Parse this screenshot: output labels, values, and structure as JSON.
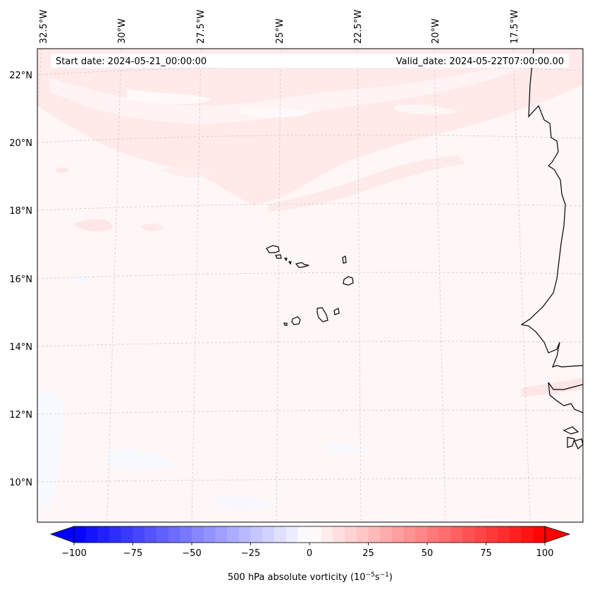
{
  "header": {
    "start_date": "Start date: 2024-05-21_00:00:00",
    "valid_date": "Valid_date: 2024-05-22T07:00:00.00"
  },
  "axes": {
    "longitude_labels": [
      "32.5°W",
      "30°W",
      "27.5°W",
      "25°W",
      "22.5°W",
      "20°W",
      "17.5°W"
    ],
    "latitude_labels": [
      "22°N",
      "20°N",
      "18°N",
      "16°N",
      "14°N",
      "12°N",
      "10°N"
    ]
  },
  "colorbar": {
    "ticks": [
      "−100",
      "−75",
      "−50",
      "−25",
      "0",
      "25",
      "50",
      "75",
      "100"
    ],
    "min": -100,
    "max": 100,
    "label_main": "500 hPa absolute vorticity (10",
    "label_exp1": "−5",
    "label_mid": "s",
    "label_exp2": "−1",
    "label_end": ")"
  },
  "colors": {
    "negative_max": "#0000ff",
    "neutral": "#ffffff",
    "positive_max": "#ff0000",
    "field_background": "#fff5f5",
    "coastline": "#000000",
    "gridline": "#cccccc"
  }
}
